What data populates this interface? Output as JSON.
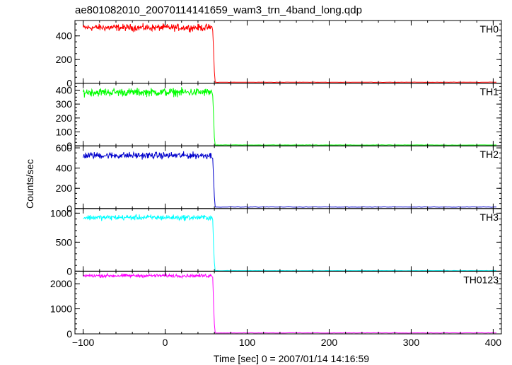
{
  "chart_data": {
    "type": "line",
    "title": "ae801082010_20070114141659_wam3_trn_4band_long.qdp",
    "xlabel": "Time [sec] 0 = 2007/01/14 14:16:59",
    "ylabel": "Counts/sec",
    "xlim": [
      -110,
      410
    ],
    "xticks": [
      -100,
      0,
      100,
      200,
      300,
      400
    ],
    "drop_time": 60,
    "panels": [
      {
        "name": "TH0",
        "color": "#ff0000",
        "ylim": [
          0,
          530
        ],
        "yticks": [
          0,
          200,
          400
        ],
        "baseline": 470,
        "noise": 25,
        "post": 8,
        "transition": [
          280,
          100
        ]
      },
      {
        "name": "TH1",
        "color": "#00ff00",
        "ylim": [
          0,
          450
        ],
        "yticks": [
          0,
          100,
          200,
          300,
          400
        ],
        "baseline": 385,
        "noise": 25,
        "post": 6,
        "transition": [
          220,
          60
        ]
      },
      {
        "name": "TH2",
        "color": "#0000cc",
        "ylim": [
          0,
          620
        ],
        "yticks": [
          0,
          200,
          400,
          600
        ],
        "baseline": 525,
        "noise": 28,
        "post": 15,
        "transition": [
          300,
          120
        ]
      },
      {
        "name": "TH3",
        "color": "#00ffff",
        "ylim": [
          0,
          1080
        ],
        "yticks": [
          0,
          500,
          1000
        ],
        "baseline": 925,
        "noise": 40,
        "post": 10,
        "transition": [
          450,
          150
        ]
      },
      {
        "name": "TH0123",
        "color": "#ff00ff",
        "ylim": [
          0,
          2500
        ],
        "yticks": [
          0,
          1000,
          2000
        ],
        "baseline": 2320,
        "noise": 60,
        "post": 40,
        "transition": [
          1200,
          400
        ]
      }
    ]
  }
}
